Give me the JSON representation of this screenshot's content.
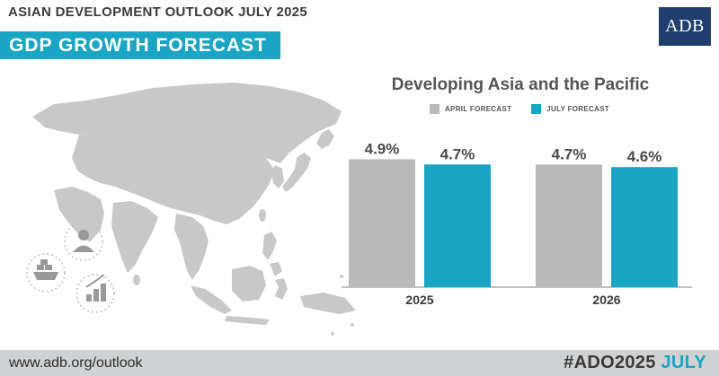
{
  "header": {
    "subtitle": "ASIAN DEVELOPMENT OUTLOOK JULY 2025",
    "banner": "GDP GROWTH FORECAST",
    "logo_text": "ADB"
  },
  "icons": [
    "world-map-icon",
    "person-icon",
    "shipping-icon",
    "growth-coins-icon"
  ],
  "colors": {
    "accent": "#1aa5c4",
    "april_bar": "#b9b9b9",
    "logo_bg": "#1f3e6e",
    "map": "#c8c8c8",
    "footer_bg": "#cfd1d3"
  },
  "chart_data": {
    "type": "bar",
    "title": "Developing Asia and the Pacific",
    "categories": [
      "2025",
      "2026"
    ],
    "series": [
      {
        "name": "APRIL FORECAST",
        "values": [
          4.9,
          4.7
        ],
        "labels": [
          "4.9%",
          "4.7%"
        ],
        "color": "#b9b9b9"
      },
      {
        "name": "JULY FORECAST",
        "values": [
          4.7,
          4.6
        ],
        "labels": [
          "4.7%",
          "4.6%"
        ],
        "color": "#1aa5c4"
      }
    ],
    "xlabel": "",
    "ylabel": "",
    "ylim": [
      0,
      5.5
    ],
    "grid": false,
    "legend": "top"
  },
  "footer": {
    "url": "www.adb.org/outlook",
    "hashtag": "#ADO2025",
    "hashtag_accent": "JULY"
  }
}
